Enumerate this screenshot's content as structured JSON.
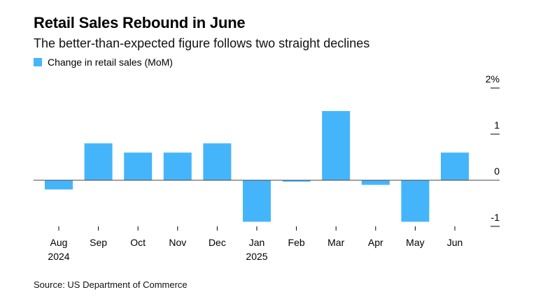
{
  "chart_data": {
    "type": "bar",
    "title": "Retail Sales Rebound in June",
    "subtitle": "The better-than-expected figure follows two straight declines",
    "source": "Source: US Department of Commerce",
    "series": [
      {
        "name": "Change in retail sales (MoM)",
        "color": "#45b5fb",
        "values": [
          -0.2,
          0.8,
          0.6,
          0.6,
          0.8,
          -0.9,
          -0.03,
          1.5,
          -0.1,
          -0.9,
          0.6
        ]
      }
    ],
    "categories": [
      "Aug",
      "Sep",
      "Oct",
      "Nov",
      "Dec",
      "Jan",
      "Feb",
      "Mar",
      "Apr",
      "May",
      "Jun"
    ],
    "category_years": [
      "2024",
      "",
      "",
      "",
      "",
      "2025",
      "",
      "",
      "",
      "",
      ""
    ],
    "ylim": [
      -1,
      2
    ],
    "yticks": [
      {
        "value": 2,
        "label": "2%"
      },
      {
        "value": 1,
        "label": "1"
      },
      {
        "value": 0,
        "label": "0"
      },
      {
        "value": -1,
        "label": "-1"
      }
    ],
    "y_axis_side": "right",
    "grid": false,
    "legend_position": "top-left"
  }
}
